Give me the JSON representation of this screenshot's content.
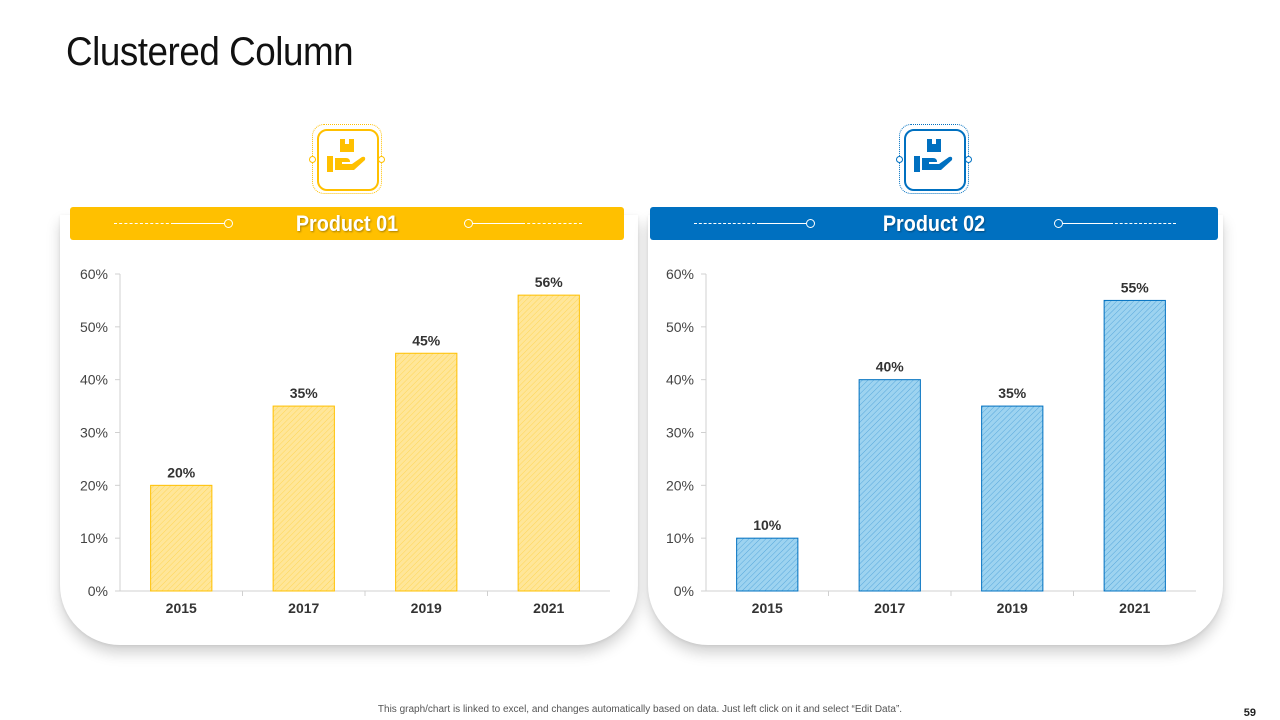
{
  "slide": {
    "title": "Clustered Column",
    "footer_note": "This graph/chart is linked to excel, and changes automatically  based on data. Just left click on it and select “Edit Data”.",
    "page_number": "59"
  },
  "icons": {
    "product_1": "hand-holding-box-icon",
    "product_2": "hand-holding-box-icon"
  },
  "colors": {
    "product_1": "#FFC000",
    "product_2": "#0070C0",
    "product_1_fill": "#FFE699",
    "product_2_fill": "#9DD3F0"
  },
  "chart_data": [
    {
      "type": "bar",
      "title": "Product 01",
      "categories": [
        "2015",
        "2017",
        "2019",
        "2021"
      ],
      "values": [
        20,
        35,
        45,
        56
      ],
      "value_labels": [
        "20%",
        "35%",
        "45%",
        "56%"
      ],
      "ylim": [
        0,
        60
      ],
      "yticks": [
        "0%",
        "10%",
        "20%",
        "30%",
        "40%",
        "50%",
        "60%"
      ],
      "grid": false
    },
    {
      "type": "bar",
      "title": "Product 02",
      "categories": [
        "2015",
        "2017",
        "2019",
        "2021"
      ],
      "values": [
        10,
        40,
        35,
        55
      ],
      "value_labels": [
        "10%",
        "40%",
        "35%",
        "55%"
      ],
      "ylim": [
        0,
        60
      ],
      "yticks": [
        "0%",
        "10%",
        "20%",
        "30%",
        "40%",
        "50%",
        "60%"
      ],
      "grid": false
    }
  ]
}
